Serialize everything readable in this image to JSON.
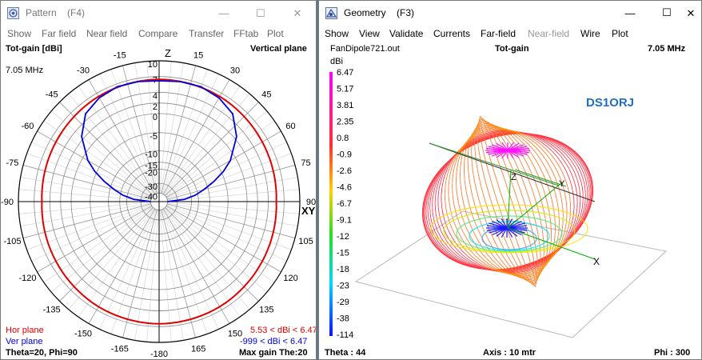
{
  "pattern": {
    "title": "Pattern    (F4)",
    "caption_buttons": {
      "minimize": "—",
      "maximize": "☐",
      "close": "✕"
    },
    "menu": [
      "Show",
      "Far field",
      "Near field",
      "Compare",
      "Transfer",
      "FFtab",
      "Plot"
    ],
    "top_left": "Tot-gain [dBi]",
    "top_right": "Vertical plane",
    "freq": "7.05 MHz",
    "z_label": "Z",
    "xy_label": "XY",
    "angle_labels": [
      "-15",
      "15",
      "-30",
      "30",
      "-45",
      "45",
      "-60",
      "60",
      "-75",
      "75",
      "-90",
      "90",
      "-105",
      "105",
      "-120",
      "120",
      "-135",
      "135",
      "-150",
      "150",
      "-165",
      "165",
      "-180"
    ],
    "gain_labels": [
      "10",
      "7",
      "4",
      "2",
      "0",
      "-5",
      "-10",
      "-15",
      "-20",
      "-30",
      "-40"
    ],
    "legend": {
      "hor_label": "Hor plane",
      "hor_range": "5.53 < dBi < 6.47",
      "ver_label": "Ver plane",
      "ver_range": "-999 < dBi < 6.47",
      "hor_color": "#e00000",
      "ver_color": "#0000dd"
    },
    "bottom_left": "Theta=20, Phi=90",
    "bottom_right": "Max gain The:20",
    "chart_data": {
      "type": "polar",
      "title": "Tot-gain [dBi]",
      "plane": "Vertical plane",
      "frequency": "7.05 MHz",
      "radial_scale_dBi": [
        10,
        7,
        4,
        2,
        0,
        -5,
        -10,
        -15,
        -20,
        -30,
        -40
      ],
      "angle_ticks_deg": [
        -180,
        -165,
        -150,
        -135,
        -120,
        -105,
        -90,
        -75,
        -60,
        -45,
        -30,
        -15,
        0,
        15,
        30,
        45,
        60,
        75,
        90,
        105,
        120,
        135,
        150,
        165
      ],
      "series": [
        {
          "name": "Hor plane",
          "min_dBi": 5.53,
          "max_dBi": 6.47,
          "angle_deg": [
            0,
            30,
            60,
            90,
            120,
            150,
            180,
            210,
            240,
            270,
            300,
            330
          ],
          "gain_dBi": [
            6.47,
            6.3,
            5.9,
            5.53,
            5.9,
            6.3,
            6.47,
            6.3,
            5.9,
            5.53,
            5.9,
            6.3
          ]
        },
        {
          "name": "Ver plane",
          "min_dBi": -999,
          "max_dBi": 6.47,
          "angle_deg": [
            -90,
            -85,
            -80,
            -75,
            -70,
            -65,
            -60,
            -50,
            -40,
            -30,
            -20,
            -10,
            0,
            10,
            20,
            30,
            40,
            50,
            60,
            65,
            70,
            75,
            80,
            85,
            90
          ],
          "gain_dBi": [
            -40,
            -25,
            -17,
            -12,
            -8,
            -4.5,
            -1.5,
            2.5,
            5,
            6,
            6.47,
            6.4,
            6.2,
            6.4,
            6.47,
            6,
            5,
            2.5,
            -1.5,
            -4.5,
            -8,
            -12,
            -17,
            -25,
            -40
          ]
        }
      ],
      "max_gain_theta": 20,
      "cursor": {
        "theta": 20,
        "phi": 90
      }
    }
  },
  "geometry": {
    "title": "Geometry    (F3)",
    "caption_buttons": {
      "minimize": "—",
      "maximize": "☐",
      "close": "✕"
    },
    "menu": [
      {
        "label": "Show",
        "disabled": false
      },
      {
        "label": "View",
        "disabled": false
      },
      {
        "label": "Validate",
        "disabled": false
      },
      {
        "label": "Currents",
        "disabled": false
      },
      {
        "label": "Far-field",
        "disabled": false
      },
      {
        "label": "Near-field",
        "disabled": true
      },
      {
        "label": "Wire",
        "disabled": false
      },
      {
        "label": "Plot",
        "disabled": false
      }
    ],
    "filename": "FanDipole721.out",
    "center": "Tot-gain",
    "freq": "7.05 MHz",
    "unit": "dBi",
    "scale": [
      "6.47",
      "5.17",
      "3.81",
      "2.35",
      "0.8",
      "-0.9",
      "-2.6",
      "-4.6",
      "-6.7",
      "-9.1",
      "-12",
      "-15",
      "-18",
      "-23",
      "-29",
      "-38",
      "-114"
    ],
    "callsign": "DS1ORJ",
    "callsign_color": "#1e6fc2",
    "axis_labels": {
      "x": "X",
      "y": "Y",
      "z": "Z"
    },
    "bottom_left": "Theta : 44",
    "bottom_center": "Axis : 10 mtr",
    "bottom_right": "Phi : 300"
  }
}
